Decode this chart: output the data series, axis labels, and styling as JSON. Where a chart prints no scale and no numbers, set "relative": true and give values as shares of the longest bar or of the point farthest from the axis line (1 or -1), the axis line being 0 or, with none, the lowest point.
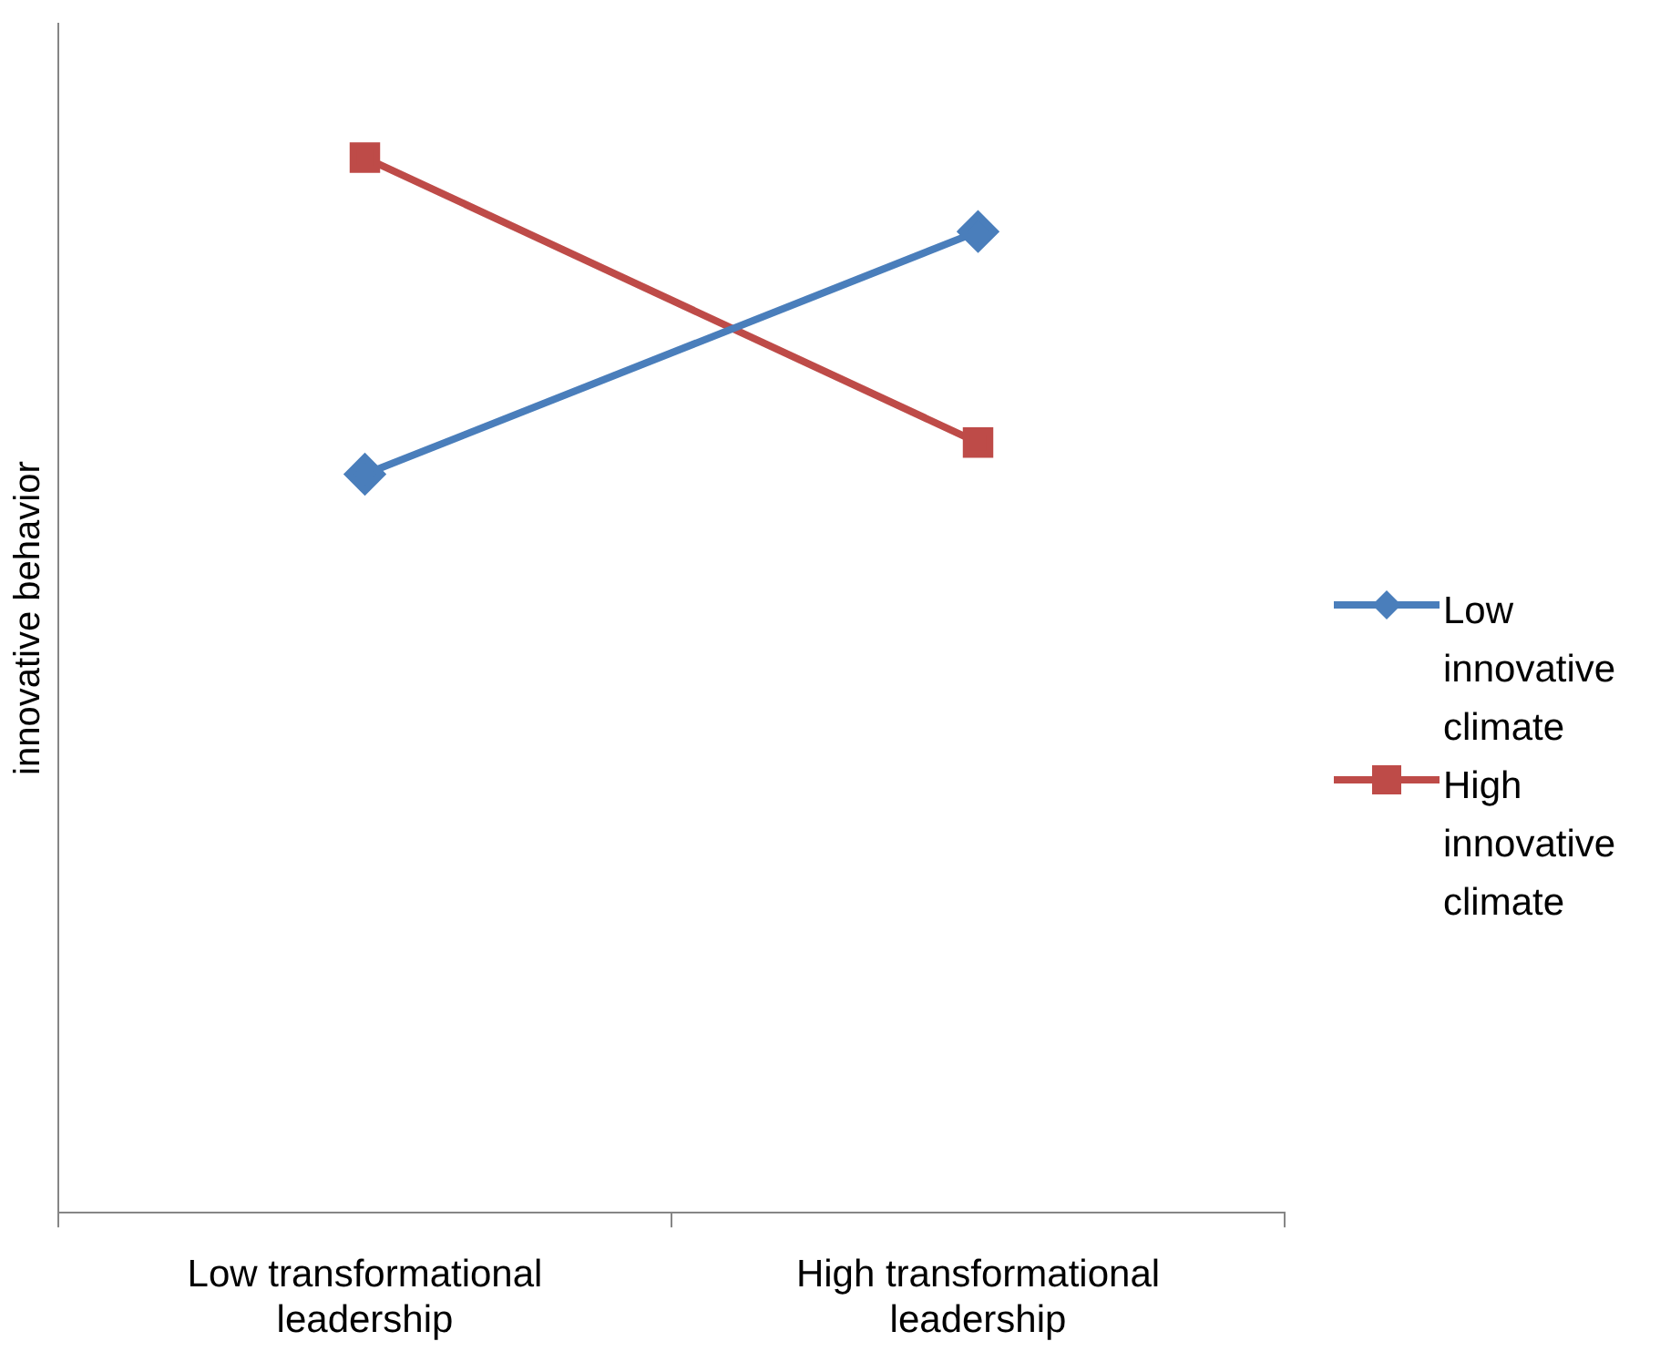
{
  "chart_data": {
    "type": "line",
    "ylabel": "innovative behavior",
    "relative": true,
    "categories": [
      "Low transformational leadership",
      "High transformational leadership"
    ],
    "legend": "right",
    "grid": false,
    "line_style": "solid",
    "series": [
      {
        "name": "Low innovative climate",
        "color": "#4a7ebb",
        "marker": "diamond",
        "values": [
          0.7,
          0.93
        ]
      },
      {
        "name": "High innovative climate",
        "color": "#be4b48",
        "marker": "square",
        "values": [
          1,
          0.73
        ]
      }
    ]
  }
}
